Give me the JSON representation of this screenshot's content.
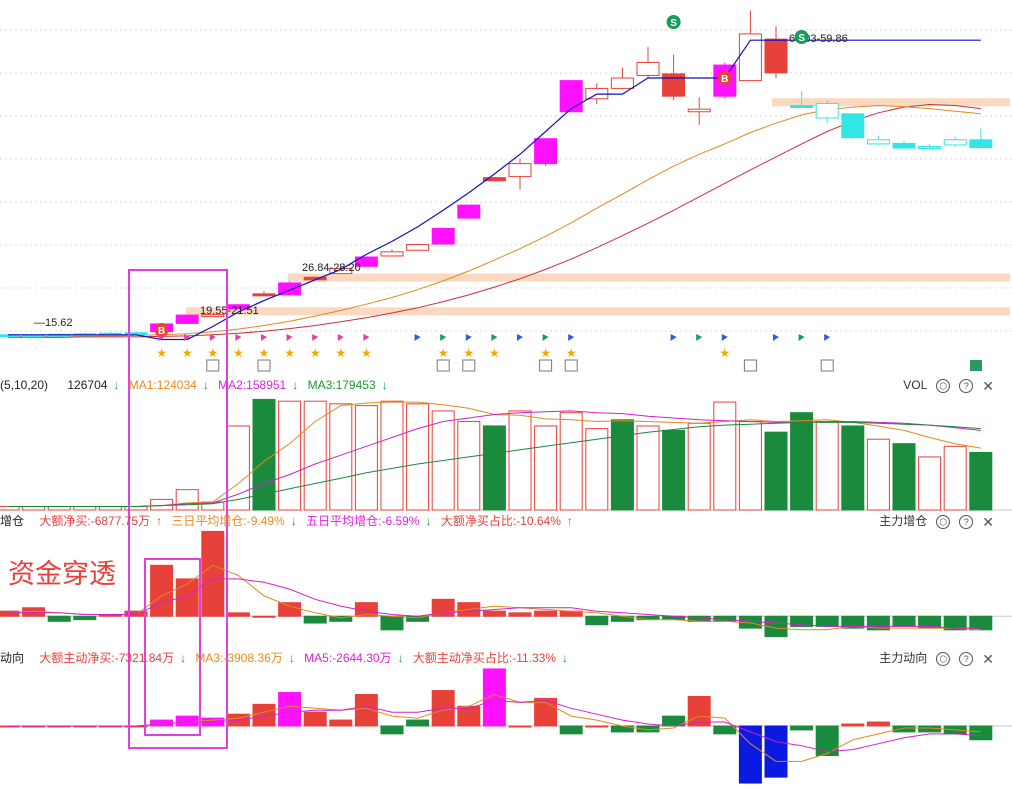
{
  "colors": {
    "up": "#e8413a",
    "down": "#1a8a3c",
    "magenta": "#ff10ff",
    "cyan": "#33e6e6",
    "blue": "#1010c0",
    "ma_orange": "#e08a20",
    "ma_red": "#c83040",
    "band": "#fad9c0",
    "highlight": "#e040e0"
  },
  "annotations": {
    "price_labels": [
      "15.62",
      "19.55-21.51",
      "26.84-28.20",
      "65.03-59.86"
    ],
    "signals": {
      "buy": "B",
      "sell": "S"
    },
    "promo": "资金穿透"
  },
  "vol_panel": {
    "prefix": "(5,10,20)",
    "current": "126704",
    "ma1": "MA1:124034",
    "ma2": "MA2:158951",
    "ma3": "MA3:179453",
    "title": "VOL"
  },
  "zlzc_panel": {
    "prefix": "增仓",
    "net": "大额净买:-6877.75万",
    "three_day": "三日平均增仓:-9.49%",
    "five_day": "五日平均增仓:-6.59%",
    "ratio": "大额净买占比:-10.64%",
    "title": "主力增仓"
  },
  "zldx_panel": {
    "prefix": "动向",
    "net": "大额主动净买:-7321.84万",
    "ma3": "MA3:-3908.36万",
    "ma5": "MA5:-2644.30万",
    "ratio": "大额主动净买占比:-11.33%",
    "title": "主力动向"
  },
  "chart_data": [
    {
      "type": "candlestick",
      "name": "price",
      "candles": [
        {
          "o": 15.0,
          "h": 15.2,
          "l": 14.8,
          "c": 15.0,
          "k": "cyan"
        },
        {
          "o": 14.9,
          "h": 15.1,
          "l": 14.7,
          "c": 15.0,
          "k": "cyan"
        },
        {
          "o": 15.0,
          "h": 15.3,
          "l": 14.8,
          "c": 15.1,
          "k": "cyan"
        },
        {
          "o": 15.1,
          "h": 15.4,
          "l": 14.9,
          "c": 15.2,
          "k": "cyan"
        },
        {
          "o": 15.2,
          "h": 15.5,
          "l": 15.0,
          "c": 15.3,
          "k": "cyan"
        },
        {
          "o": 15.3,
          "h": 15.6,
          "l": 15.1,
          "c": 15.4,
          "k": "cyan"
        },
        {
          "o": 15.6,
          "h": 17.1,
          "l": 15.6,
          "c": 17.1,
          "k": "magenta"
        },
        {
          "o": 17.2,
          "h": 18.8,
          "l": 17.2,
          "c": 18.8,
          "k": "magenta"
        },
        {
          "o": 18.9,
          "h": 19.0,
          "l": 18.8,
          "c": 18.9,
          "k": "upline"
        },
        {
          "o": 20.0,
          "h": 20.8,
          "l": 20.0,
          "c": 20.8,
          "k": "magenta"
        },
        {
          "o": 22.6,
          "h": 23.4,
          "l": 22.6,
          "c": 22.9,
          "k": "upfill"
        },
        {
          "o": 22.7,
          "h": 25.3,
          "l": 22.7,
          "c": 25.0,
          "k": "magenta"
        },
        {
          "o": 25.6,
          "h": 26.2,
          "l": 25.6,
          "c": 26.1,
          "k": "upfill"
        },
        {
          "o": 26.8,
          "h": 28.2,
          "l": 26.7,
          "c": 27.8,
          "k": "upline"
        },
        {
          "o": 28.2,
          "h": 30.0,
          "l": 28.2,
          "c": 30.0,
          "k": "magenta"
        },
        {
          "o": 30.2,
          "h": 31.5,
          "l": 30.1,
          "c": 31.0,
          "k": "upline"
        },
        {
          "o": 31.3,
          "h": 32.6,
          "l": 31.3,
          "c": 32.4,
          "k": "upline"
        },
        {
          "o": 32.5,
          "h": 35.5,
          "l": 32.5,
          "c": 35.5,
          "k": "magenta"
        },
        {
          "o": 37.5,
          "h": 40.0,
          "l": 37.5,
          "c": 40.0,
          "k": "magenta"
        },
        {
          "o": 44.7,
          "h": 45.3,
          "l": 44.7,
          "c": 45.3,
          "k": "upfill"
        },
        {
          "o": 45.5,
          "h": 49.0,
          "l": 43.0,
          "c": 48.0,
          "k": "upline"
        },
        {
          "o": 48.0,
          "h": 52.8,
          "l": 47.5,
          "c": 52.8,
          "k": "magenta"
        },
        {
          "o": 58.0,
          "h": 64.0,
          "l": 58.0,
          "c": 64.0,
          "k": "magenta"
        },
        {
          "o": 60.5,
          "h": 63.5,
          "l": 59.5,
          "c": 62.5,
          "k": "upline"
        },
        {
          "o": 62.5,
          "h": 66.5,
          "l": 62.3,
          "c": 64.5,
          "k": "upline"
        },
        {
          "o": 65.0,
          "h": 70.5,
          "l": 64.5,
          "c": 67.5,
          "k": "upline"
        },
        {
          "o": 65.3,
          "h": 69.0,
          "l": 60.2,
          "c": 61.0,
          "k": "down"
        },
        {
          "o": 58.5,
          "h": 60.8,
          "l": 55.5,
          "c": 58.0,
          "k": "upline"
        },
        {
          "o": 61.0,
          "h": 67.5,
          "l": 60.5,
          "c": 67.0,
          "k": "magenta"
        },
        {
          "o": 64.0,
          "h": 77.5,
          "l": 64.0,
          "c": 73.0,
          "k": "upline"
        },
        {
          "o": 72.0,
          "h": 74.5,
          "l": 64.5,
          "c": 65.5,
          "k": "down"
        },
        {
          "o": 59.2,
          "h": 62.0,
          "l": 58.8,
          "c": 59.0,
          "k": "cyan"
        },
        {
          "o": 59.6,
          "h": 60.2,
          "l": 55.8,
          "c": 56.8,
          "k": "cyanline"
        },
        {
          "o": 57.6,
          "h": 57.6,
          "l": 52.7,
          "c": 53.0,
          "k": "cyan"
        },
        {
          "o": 52.6,
          "h": 53.4,
          "l": 51.6,
          "c": 51.8,
          "k": "cyanline"
        },
        {
          "o": 51.9,
          "h": 52.4,
          "l": 51.0,
          "c": 51.0,
          "k": "cyan"
        },
        {
          "o": 51.3,
          "h": 51.8,
          "l": 50.7,
          "c": 51.2,
          "k": "cyanline"
        },
        {
          "o": 52.6,
          "h": 53.2,
          "l": 51.2,
          "c": 51.6,
          "k": "cyanline"
        },
        {
          "o": 52.6,
          "h": 54.8,
          "l": 50.9,
          "c": 51.1,
          "k": "cyan"
        }
      ],
      "blue_line": [
        15.0,
        15.0,
        15.0,
        15.0,
        15.0,
        15.0,
        14.1,
        14.1,
        16.6,
        19.4,
        21.6,
        23.6,
        25.6,
        27.6,
        30.5,
        33.0,
        35.8,
        39.0,
        42.4,
        46.0,
        49.8,
        54.2,
        58.6,
        61.4,
        61.4,
        64.5,
        64.5,
        64.5,
        64.5,
        71.8,
        71.8,
        71.8,
        71.8,
        71.8,
        71.8,
        71.8,
        71.8,
        71.8,
        71.8
      ],
      "ma_orange": [
        14.7,
        14.7,
        14.7,
        14.8,
        14.8,
        14.9,
        15.0,
        15.2,
        15.6,
        16.1,
        16.8,
        17.6,
        18.6,
        19.7,
        20.9,
        22.2,
        23.7,
        25.4,
        27.3,
        29.4,
        31.6,
        34.0,
        36.6,
        39.4,
        42.1,
        44.9,
        47.5,
        49.8,
        51.8,
        54.0,
        55.8,
        57.4,
        58.4,
        58.9,
        59.2,
        59.0,
        58.6,
        58.1,
        57.6
      ],
      "ma_red": [
        14.5,
        14.5,
        14.5,
        14.6,
        14.6,
        14.6,
        14.7,
        14.8,
        15.0,
        15.3,
        15.7,
        16.2,
        16.8,
        17.5,
        18.3,
        19.2,
        20.2,
        21.4,
        22.7,
        24.2,
        25.8,
        27.6,
        29.6,
        31.8,
        34.1,
        36.5,
        39.0,
        41.6,
        44.2,
        46.8,
        49.3,
        51.8,
        54.2,
        56.2,
        57.8,
        58.9,
        59.4,
        59.2,
        58.6
      ],
      "ylim": [
        14.0,
        78.0
      ],
      "bands": [
        [
          59.6,
          60.6
        ],
        [
          26.0,
          26.8
        ],
        [
          19.5,
          20.3
        ]
      ],
      "buy_markers": [
        6,
        28
      ],
      "sell_markers": [
        26,
        31
      ]
    },
    {
      "type": "bar",
      "name": "VOL",
      "values": [
        4,
        4,
        4,
        4,
        4,
        4,
        12,
        23,
        9,
        95,
        125,
        123,
        123,
        120,
        118,
        123,
        120,
        112,
        100,
        95,
        112,
        95,
        110,
        92,
        102,
        95,
        90,
        98,
        122,
        100,
        88,
        110,
        100,
        95,
        80,
        75,
        60,
        72,
        65
      ],
      "fill": [
        "u",
        "u",
        "u",
        "u",
        "u",
        "u",
        "u",
        "u",
        "u",
        "u",
        "d",
        "u",
        "u",
        "u",
        "u",
        "u",
        "u",
        "u",
        "u",
        "d",
        "u",
        "u",
        "u",
        "u",
        "d",
        "u",
        "d",
        "u",
        "u",
        "u",
        "d",
        "d",
        "u",
        "d",
        "u",
        "d",
        "u",
        "u",
        "d"
      ],
      "ma5": [
        4,
        4,
        4,
        4,
        4,
        4,
        5,
        8,
        9,
        30,
        55,
        75,
        100,
        118,
        121,
        122,
        122,
        119,
        115,
        108,
        107,
        103,
        102,
        100,
        101,
        100,
        99,
        98,
        100,
        102,
        100,
        101,
        102,
        99,
        95,
        90,
        82,
        75,
        70
      ],
      "ma10": [
        4,
        4,
        4,
        4,
        4,
        4,
        5,
        7,
        8,
        18,
        30,
        40,
        52,
        62,
        72,
        82,
        92,
        100,
        104,
        108,
        110,
        111,
        112,
        110,
        109,
        106,
        104,
        102,
        101,
        100,
        99,
        99,
        100,
        100,
        99,
        98,
        96,
        93,
        90
      ],
      "ma20": [
        4,
        4,
        4,
        4,
        4,
        4,
        5,
        6,
        7,
        12,
        18,
        24,
        30,
        36,
        42,
        47,
        52,
        56,
        60,
        64,
        68,
        72,
        76,
        80,
        84,
        88,
        91,
        94,
        96,
        97,
        98,
        99,
        99,
        99,
        98,
        97,
        96,
        94,
        92
      ],
      "ylim": [
        0,
        130
      ]
    },
    {
      "type": "bar",
      "name": "主力增仓",
      "values": [
        3,
        5,
        -3,
        -2,
        1,
        3,
        30,
        22,
        50,
        2,
        0,
        8,
        -4,
        -3,
        8,
        -8,
        -3,
        10,
        8,
        3,
        2,
        3,
        3,
        -5,
        -3,
        -2,
        -2,
        -3,
        -3,
        -7,
        -12,
        -6,
        -6,
        -7,
        -8,
        -6,
        -7,
        -8,
        -8
      ],
      "fill": [
        "u",
        "u",
        "d",
        "d",
        "u",
        "u",
        "u",
        "u",
        "u",
        "u",
        "u",
        "u",
        "d",
        "d",
        "u",
        "d",
        "d",
        "u",
        "u",
        "u",
        "u",
        "u",
        "u",
        "d",
        "d",
        "d",
        "d",
        "d",
        "d",
        "d",
        "d",
        "d",
        "d",
        "d",
        "d",
        "d",
        "d",
        "d",
        "d"
      ],
      "ma_orange": [
        2,
        3,
        2,
        1,
        1,
        1,
        12,
        19,
        30,
        24,
        12,
        6,
        2,
        -1,
        1,
        0,
        -1,
        2,
        4,
        6,
        5,
        4,
        3,
        2,
        0,
        -2,
        -2,
        -3,
        -3,
        -4,
        -7,
        -8,
        -8,
        -6,
        -7,
        -7,
        -7,
        -7,
        -8
      ],
      "ma_mag": [
        2,
        2,
        2,
        1,
        1,
        1,
        8,
        12,
        22,
        22,
        20,
        16,
        10,
        6,
        3,
        1,
        0,
        2,
        3,
        4,
        5,
        5,
        5,
        3,
        2,
        1,
        0,
        -1,
        -2,
        -3,
        -4,
        -5,
        -6,
        -6,
        -6,
        -6,
        -6,
        -7,
        -7
      ],
      "ylim": [
        -14,
        52
      ]
    },
    {
      "type": "bar",
      "name": "主力动向",
      "values": [
        0,
        0,
        0,
        0,
        0,
        0,
        3,
        5,
        4,
        6,
        11,
        17,
        7,
        3,
        16,
        -4,
        3,
        18,
        10,
        29,
        0,
        14,
        -4,
        0,
        -3,
        -3,
        5,
        15,
        -4,
        -29,
        -26,
        -2,
        -15,
        1,
        2,
        -3,
        -3,
        -4,
        -7
      ],
      "fill": [
        "u",
        "u",
        "u",
        "u",
        "u",
        "u",
        "m",
        "m",
        "m",
        "u",
        "u",
        "m",
        "u",
        "u",
        "u",
        "d",
        "d",
        "u",
        "u",
        "m",
        "u",
        "u",
        "d",
        "u",
        "d",
        "d",
        "d",
        "u",
        "d",
        "b",
        "b",
        "d",
        "d",
        "u",
        "u",
        "d",
        "d",
        "d",
        "d"
      ],
      "ma_orange": [
        0,
        0,
        0,
        0,
        0,
        0,
        1,
        2,
        3,
        4,
        7,
        10,
        9,
        8,
        9,
        5,
        4,
        8,
        10,
        16,
        12,
        12,
        5,
        3,
        0,
        -2,
        -1,
        5,
        4,
        -9,
        -18,
        -18,
        -14,
        -7,
        -4,
        -1,
        -1,
        -2,
        -3
      ],
      "ma_mag": [
        0,
        0,
        0,
        0,
        0,
        0,
        1,
        2,
        2,
        3,
        5,
        7,
        8,
        8,
        10,
        7,
        7,
        9,
        9,
        13,
        12,
        13,
        9,
        6,
        3,
        1,
        0,
        2,
        2,
        -3,
        -8,
        -10,
        -13,
        -12,
        -9,
        -6,
        -4,
        -4,
        -5
      ],
      "ylim": [
        -30,
        31
      ]
    }
  ]
}
